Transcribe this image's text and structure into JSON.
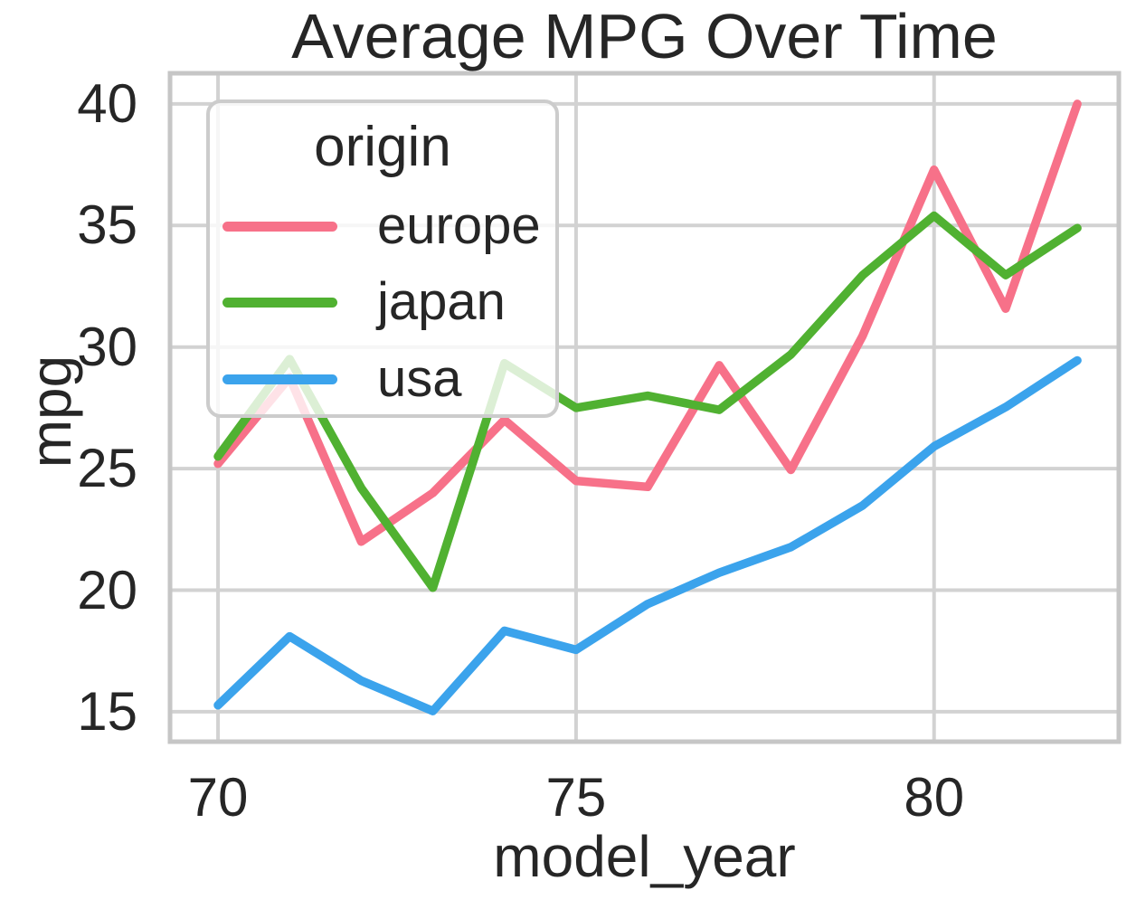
{
  "figure": {
    "title": "Average MPG Over Time",
    "xlabel": "model_year",
    "ylabel": "mpg"
  },
  "legend": {
    "title": "origin",
    "position": "upper left"
  },
  "colors": {
    "grid": "#d2d2d2",
    "spine": "#c6c6c6",
    "text": "#262626",
    "legend_border": "#cccccc",
    "background": "#ffffff"
  },
  "chart_data": {
    "type": "line",
    "title": "Average MPG Over Time",
    "xlabel": "model_year",
    "ylabel": "mpg",
    "x": [
      70,
      71,
      72,
      73,
      74,
      75,
      76,
      77,
      78,
      79,
      80,
      81,
      82
    ],
    "series": [
      {
        "name": "europe",
        "color": "#f77189",
        "values": [
          25.2,
          28.75,
          22.0,
          24.0,
          27.0,
          24.5,
          24.25,
          29.25,
          24.95,
          30.45,
          37.29,
          31.58,
          40.0
        ]
      },
      {
        "name": "japan",
        "color": "#50b131",
        "values": [
          25.5,
          29.5,
          24.2,
          20.1,
          29.33,
          27.5,
          28.0,
          27.42,
          29.69,
          32.95,
          35.4,
          32.96,
          34.89
        ]
      },
      {
        "name": "usa",
        "color": "#3ba3ec",
        "values": [
          15.27,
          18.1,
          16.28,
          15.03,
          18.33,
          17.55,
          19.43,
          20.72,
          21.77,
          23.48,
          25.91,
          27.53,
          29.45
        ]
      }
    ],
    "xticks": [
      70,
      75,
      80
    ],
    "yticks": [
      15,
      20,
      25,
      30,
      35,
      40
    ],
    "xlim": [
      69.33,
      82.58
    ],
    "ylim": [
      13.77,
      41.26
    ],
    "grid": true,
    "legend_position": "upper left",
    "line_width": 9.5
  }
}
